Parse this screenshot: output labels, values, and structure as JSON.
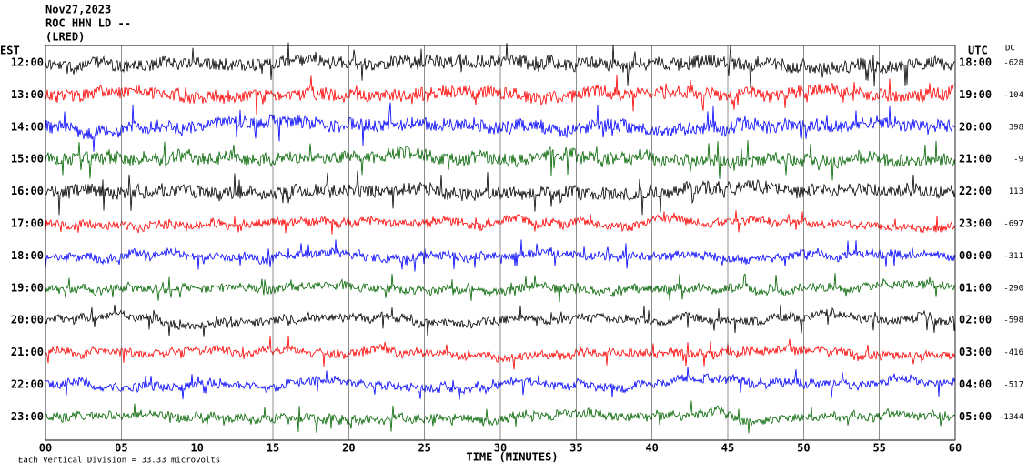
{
  "chart_data": {
    "type": "helicorder",
    "title_lines": [
      "Nov27,2023",
      "ROC HHN LD --",
      "(LRED)"
    ],
    "left_axis_label": "EST",
    "right_axis_label": "UTC",
    "dc_label": "DC",
    "xlabel": "TIME (MINUTES)",
    "footnote": "Each Vertical Division = 33.33 microvolts",
    "xlim": [
      0,
      60
    ],
    "xticks": [
      {
        "value": 0,
        "label": "00"
      },
      {
        "value": 5,
        "label": "05"
      },
      10,
      15,
      20,
      25,
      30,
      35,
      40,
      45,
      50,
      55,
      60
    ],
    "rows": [
      {
        "est": "12:00",
        "utc": "18:00",
        "dc": -628,
        "color": "#000000"
      },
      {
        "est": "13:00",
        "utc": "19:00",
        "dc": -104,
        "color": "#ff0000"
      },
      {
        "est": "14:00",
        "utc": "20:00",
        "dc": 398,
        "color": "#0000ff"
      },
      {
        "est": "15:00",
        "utc": "21:00",
        "dc": -9,
        "color": "#006400"
      },
      {
        "est": "16:00",
        "utc": "22:00",
        "dc": 113,
        "color": "#000000"
      },
      {
        "est": "17:00",
        "utc": "23:00",
        "dc": -697,
        "color": "#ff0000"
      },
      {
        "est": "18:00",
        "utc": "00:00",
        "dc": -311,
        "color": "#0000ff"
      },
      {
        "est": "19:00",
        "utc": "01:00",
        "dc": -290,
        "color": "#006400"
      },
      {
        "est": "20:00",
        "utc": "02:00",
        "dc": -598,
        "color": "#000000"
      },
      {
        "est": "21:00",
        "utc": "03:00",
        "dc": -416,
        "color": "#ff0000"
      },
      {
        "est": "22:00",
        "utc": "04:00",
        "dc": -517,
        "color": "#0000ff"
      },
      {
        "est": "23:00",
        "utc": "05:00",
        "dc": -1344,
        "color": "#006400"
      }
    ]
  }
}
